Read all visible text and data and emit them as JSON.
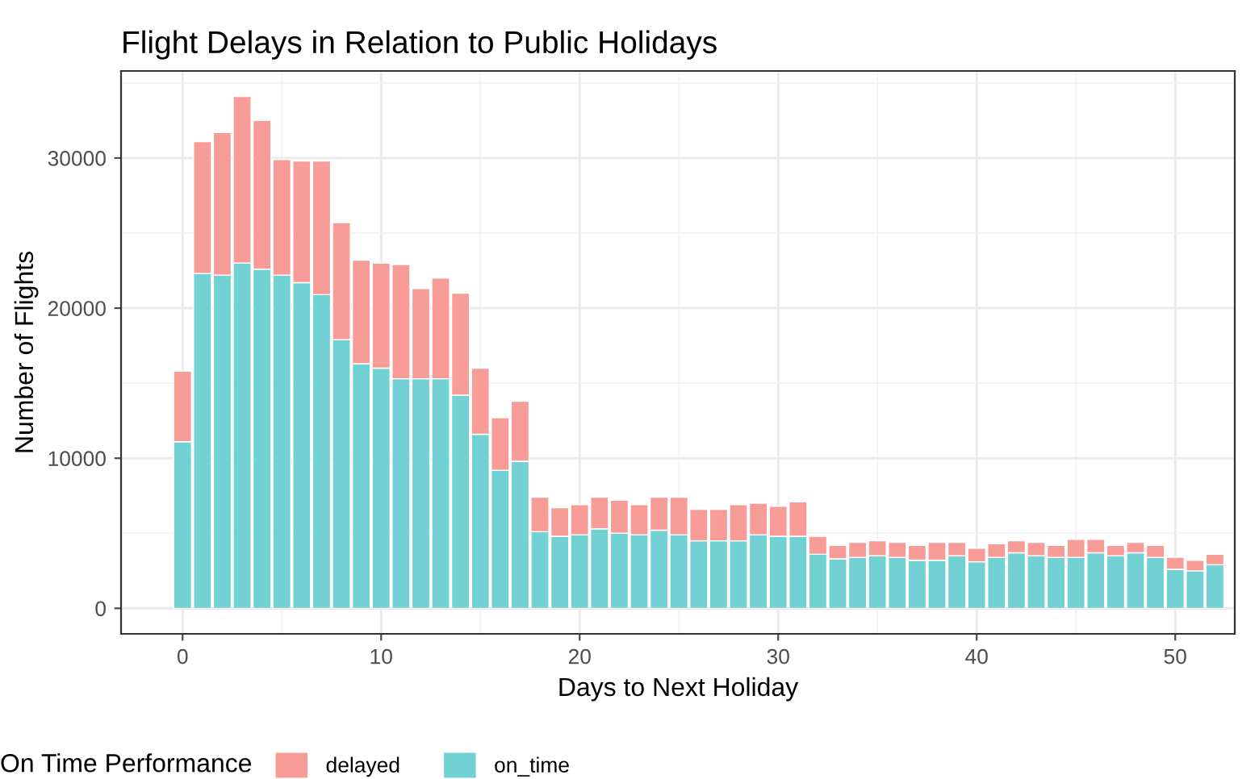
{
  "chart_data": {
    "type": "bar",
    "title": "Flight Delays in Relation to Public Holidays",
    "xlabel": "Days to Next Holiday",
    "ylabel": "Number of Flights",
    "legend_title": "On Time Performance",
    "x": [
      0,
      1,
      2,
      3,
      4,
      5,
      6,
      7,
      8,
      9,
      10,
      11,
      12,
      13,
      14,
      15,
      16,
      17,
      18,
      19,
      20,
      21,
      22,
      23,
      24,
      25,
      26,
      27,
      28,
      29,
      30,
      31,
      32,
      33,
      34,
      35,
      36,
      37,
      38,
      39,
      40,
      41,
      42,
      43,
      44,
      45,
      46,
      47,
      48,
      49,
      50,
      51,
      52
    ],
    "stacked": true,
    "series": [
      {
        "name": "on_time",
        "color": "#72d1d3",
        "values": [
          11100,
          22300,
          22200,
          23000,
          22600,
          22200,
          21700,
          20900,
          17900,
          16300,
          16000,
          15300,
          15300,
          15300,
          14200,
          11600,
          9200,
          9800,
          5100,
          4800,
          4900,
          5300,
          5000,
          4900,
          5200,
          4900,
          4500,
          4500,
          4500,
          4900,
          4800,
          4800,
          3600,
          3300,
          3400,
          3500,
          3400,
          3200,
          3200,
          3500,
          3100,
          3400,
          3700,
          3500,
          3400,
          3400,
          3700,
          3500,
          3700,
          3400,
          2600,
          2500,
          2900
        ]
      },
      {
        "name": "delayed",
        "color": "#f89c97",
        "values": [
          4700,
          8800,
          9500,
          11100,
          9900,
          7700,
          8100,
          8900,
          7800,
          6900,
          7000,
          7600,
          6000,
          6700,
          6800,
          4400,
          3500,
          4000,
          2300,
          1900,
          2000,
          2100,
          2200,
          2000,
          2200,
          2500,
          2100,
          2100,
          2400,
          2100,
          2000,
          2300,
          1200,
          900,
          1000,
          1000,
          1000,
          1000,
          1200,
          900,
          900,
          900,
          800,
          900,
          800,
          1200,
          900,
          700,
          700,
          800,
          800,
          700,
          700
        ]
      }
    ],
    "xlim": [
      -3.1,
      53.0
    ],
    "xticks": [
      0,
      10,
      20,
      30,
      40,
      50
    ],
    "ylim": [
      -1700,
      35800
    ],
    "yticks": [
      0,
      10000,
      20000,
      30000
    ],
    "grid": true,
    "legend": "bottom"
  }
}
